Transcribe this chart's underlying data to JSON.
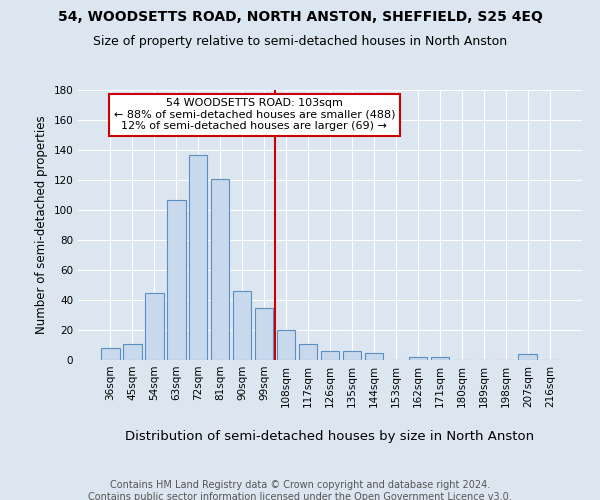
{
  "title": "54, WOODSETTS ROAD, NORTH ANSTON, SHEFFIELD, S25 4EQ",
  "subtitle": "Size of property relative to semi-detached houses in North Anston",
  "xlabel": "Distribution of semi-detached houses by size in North Anston",
  "ylabel": "Number of semi-detached properties",
  "footer1": "Contains HM Land Registry data © Crown copyright and database right 2024.",
  "footer2": "Contains public sector information licensed under the Open Government Licence v3.0.",
  "categories": [
    "36sqm",
    "45sqm",
    "54sqm",
    "63sqm",
    "72sqm",
    "81sqm",
    "90sqm",
    "99sqm",
    "108sqm",
    "117sqm",
    "126sqm",
    "135sqm",
    "144sqm",
    "153sqm",
    "162sqm",
    "171sqm",
    "180sqm",
    "189sqm",
    "198sqm",
    "207sqm",
    "216sqm"
  ],
  "values": [
    8,
    11,
    45,
    107,
    137,
    121,
    46,
    35,
    20,
    11,
    6,
    6,
    5,
    0,
    2,
    2,
    0,
    0,
    0,
    4,
    0
  ],
  "bar_color": "#c8d9ed",
  "bar_edge_color": "#5a8fc2",
  "vline_x": 7.5,
  "vline_color": "#cc0000",
  "annotation_line1": "54 WOODSETTS ROAD: 103sqm",
  "annotation_line2": "← 88% of semi-detached houses are smaller (488)",
  "annotation_line3": "12% of semi-detached houses are larger (69) →",
  "annotation_box_color": "#ffffff",
  "annotation_box_edge": "#cc0000",
  "ylim": [
    0,
    180
  ],
  "yticks": [
    0,
    20,
    40,
    60,
    80,
    100,
    120,
    140,
    160,
    180
  ],
  "bg_color": "#dce6f0",
  "title_fontsize": 10,
  "subtitle_fontsize": 9,
  "xlabel_fontsize": 9.5,
  "ylabel_fontsize": 8.5,
  "tick_fontsize": 7.5,
  "footer_fontsize": 7,
  "annotation_fontsize": 8
}
